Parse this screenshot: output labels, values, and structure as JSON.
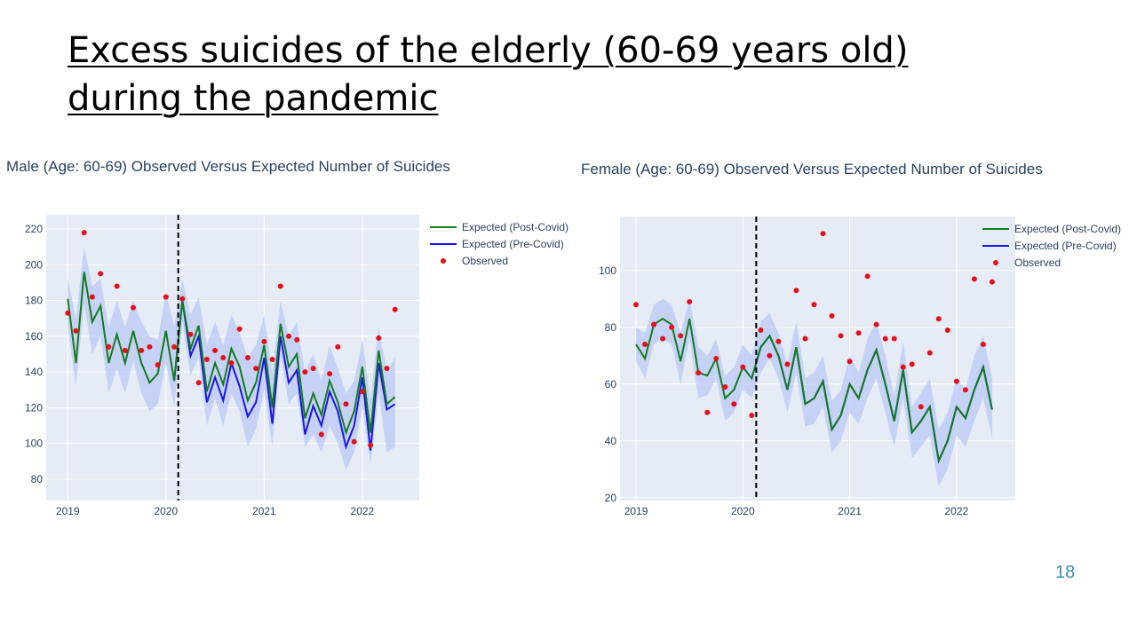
{
  "slide": {
    "title_line1": "Excess suicides of the elderly (60-69 years old)",
    "title_line2": "during the pandemic",
    "page_number": "18"
  },
  "colors": {
    "plot_bg": "#e5ecf6",
    "grid": "#ffffff",
    "post_covid": "#137a1f",
    "pre_covid": "#1a14e8",
    "observed": "#e3101a",
    "band": "#b9c9f5",
    "vline": "#000000"
  },
  "chart_data": [
    {
      "id": "male",
      "type": "line",
      "title": "Male (Age: 60-69) Observed Versus Expected Number of Suicides",
      "x_start": 2019.0,
      "x_step": 0.0833333,
      "xlim": [
        2018.78,
        2022.58
      ],
      "ylim": [
        68,
        228
      ],
      "xticks": [
        2019,
        2020,
        2021,
        2022
      ],
      "yticks": [
        80,
        100,
        120,
        140,
        160,
        180,
        200,
        220
      ],
      "vline_x": 2020.125,
      "legend_position": "top-right",
      "legend": [
        "Expected (Post-Covid)",
        "Expected (Pre-Covid)",
        "Observed"
      ],
      "series": [
        {
          "name": "Expected (Post-Covid)",
          "values": [
            181,
            145,
            196,
            168,
            177,
            145,
            161,
            145,
            163,
            145,
            134,
            139,
            163,
            135,
            180,
            153,
            166,
            129,
            145,
            133,
            153,
            143,
            124,
            134,
            155,
            120,
            167,
            143,
            150,
            114,
            128,
            116,
            135,
            123,
            106,
            118,
            143,
            106,
            152,
            122,
            126
          ]
        },
        {
          "name": "Expected (Pre-Covid)",
          "start_index": 13,
          "values": [
            135,
            180,
            149,
            160,
            123,
            137,
            124,
            145,
            132,
            115,
            123,
            148,
            111,
            160,
            134,
            141,
            105,
            121,
            110,
            129,
            118,
            98,
            110,
            137,
            96,
            145,
            119,
            122
          ]
        },
        {
          "name": "Observed",
          "values": [
            173,
            163,
            218,
            182,
            195,
            154,
            188,
            152,
            176,
            152,
            154,
            144,
            182,
            154,
            181,
            161,
            134,
            147,
            152,
            148,
            145,
            164,
            148,
            142,
            157,
            147,
            188,
            160,
            158,
            140,
            142,
            105,
            139,
            154,
            122,
            101,
            129,
            99,
            159,
            142,
            175
          ]
        }
      ],
      "band": {
        "upper": [
          192,
          170,
          210,
          188,
          192,
          165,
          180,
          165,
          180,
          168,
          160,
          158,
          185,
          165,
          192,
          172,
          182,
          155,
          168,
          155,
          172,
          162,
          148,
          155,
          172,
          140,
          180,
          160,
          168,
          140,
          150,
          135,
          155,
          142,
          128,
          135,
          158,
          125,
          165,
          140,
          148
        ],
        "lower": [
          165,
          132,
          178,
          150,
          160,
          128,
          142,
          128,
          146,
          128,
          118,
          122,
          145,
          120,
          168,
          138,
          148,
          110,
          125,
          110,
          128,
          118,
          98,
          108,
          130,
          98,
          150,
          122,
          128,
          98,
          105,
          95,
          110,
          100,
          85,
          95,
          120,
          88,
          128,
          95,
          98
        ]
      }
    },
    {
      "id": "female",
      "type": "line",
      "title": "Female (Age: 60-69) Observed Versus Expected Number of Suicides",
      "x_start": 2019.0,
      "x_step": 0.0833333,
      "xlim": [
        2018.85,
        2022.55
      ],
      "ylim": [
        19,
        119
      ],
      "xticks": [
        2019,
        2020,
        2021,
        2022
      ],
      "yticks": [
        20,
        40,
        60,
        80,
        100
      ],
      "vline_x": 2020.125,
      "legend_position": "top-right",
      "legend": [
        "Expected (Post-Covid)",
        "Expected (Pre-Covid)",
        "Observed"
      ],
      "series": [
        {
          "name": "Expected (Post-Covid)",
          "values": [
            74,
            69,
            81,
            83,
            81,
            68,
            83,
            64,
            63,
            69,
            55,
            58,
            66,
            62,
            73,
            77,
            70,
            58,
            73,
            53,
            55,
            61,
            44,
            49,
            60,
            55,
            65,
            72,
            60,
            47,
            65,
            43,
            47,
            52,
            33,
            40,
            52,
            48,
            58,
            66,
            51
          ]
        },
        {
          "name": "Expected (Pre-Covid)",
          "start_index": 13,
          "values": [
            62,
            73,
            77,
            70,
            58,
            73,
            53,
            55,
            61,
            44,
            49,
            60,
            55,
            65,
            72,
            60,
            47,
            65,
            43,
            47,
            52,
            33,
            40,
            52,
            48,
            58,
            66,
            51
          ]
        },
        {
          "name": "Observed",
          "values": [
            88,
            74,
            81,
            76,
            80,
            77,
            89,
            64,
            50,
            69,
            59,
            53,
            66,
            49,
            79,
            70,
            75,
            67,
            93,
            76,
            88,
            113,
            84,
            77,
            68,
            78,
            98,
            81,
            76,
            76,
            66,
            67,
            52,
            71,
            83,
            79,
            61,
            58,
            97,
            74,
            96
          ]
        }
      ],
      "band": {
        "upper": [
          80,
          78,
          88,
          90,
          88,
          78,
          90,
          73,
          70,
          76,
          63,
          66,
          74,
          70,
          82,
          85,
          78,
          67,
          82,
          62,
          64,
          70,
          54,
          58,
          70,
          64,
          76,
          82,
          70,
          56,
          75,
          52,
          57,
          62,
          44,
          50,
          62,
          58,
          70,
          77,
          62
        ],
        "lower": [
          68,
          62,
          74,
          76,
          74,
          60,
          76,
          55,
          56,
          62,
          47,
          50,
          58,
          55,
          64,
          69,
          62,
          50,
          64,
          45,
          46,
          52,
          36,
          40,
          50,
          46,
          55,
          62,
          50,
          38,
          55,
          34,
          38,
          42,
          24,
          30,
          42,
          38,
          47,
          55,
          41
        ]
      }
    }
  ]
}
